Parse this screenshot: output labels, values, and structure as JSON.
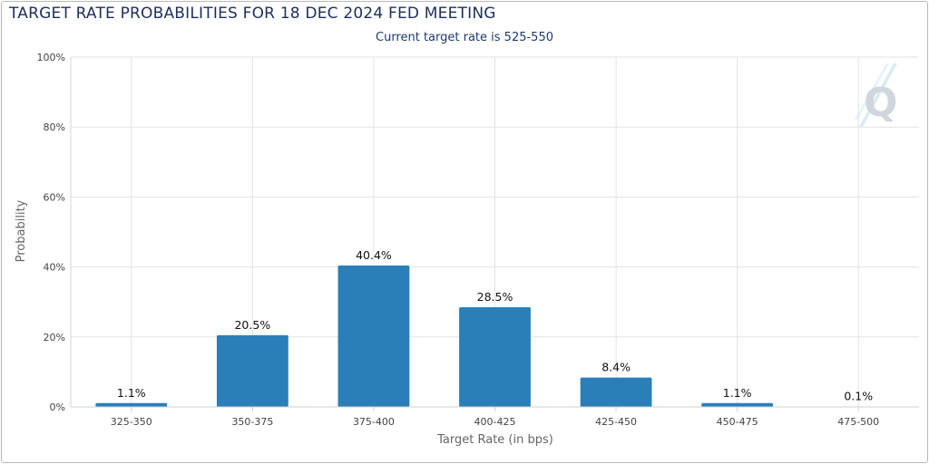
{
  "chart_data": {
    "type": "bar",
    "title": "TARGET RATE PROBABILITIES FOR 18 DEC 2024 FED MEETING",
    "subtitle": "Current target rate is 525-550",
    "xlabel": "Target Rate (in bps)",
    "ylabel": "Probability",
    "categories": [
      "325-350",
      "350-375",
      "375-400",
      "400-425",
      "425-450",
      "450-475",
      "475-500"
    ],
    "values": [
      1.1,
      20.5,
      40.4,
      28.5,
      8.4,
      1.1,
      0.1
    ],
    "data_labels": [
      "1.1%",
      "20.5%",
      "40.4%",
      "28.5%",
      "8.4%",
      "1.1%",
      "0.1%"
    ],
    "ylim": [
      0,
      100
    ],
    "yticks": [
      0,
      20,
      40,
      60,
      80,
      100
    ],
    "ytick_labels": [
      "0%",
      "20%",
      "40%",
      "60%",
      "80%",
      "100%"
    ],
    "grid": true,
    "bar_color": "#2a7fb9",
    "grid_color": "#e3e3e3"
  },
  "watermark": {
    "text": "Q"
  }
}
